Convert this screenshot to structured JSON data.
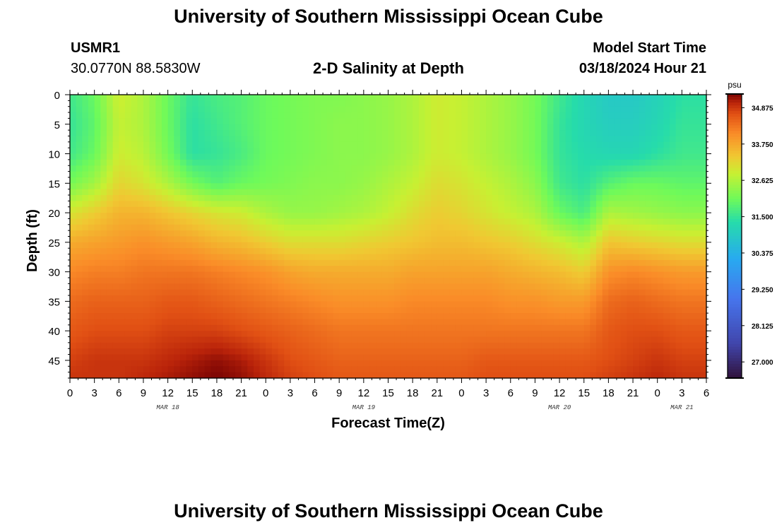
{
  "header": {
    "title": "University of Southern Mississippi Ocean Cube",
    "station": "USMR1",
    "coordinates": "30.0770N  88.5830W",
    "subtitle": "2-D Salinity at Depth",
    "model_start_label": "Model Start Time",
    "model_start_value": "03/18/2024 Hour 21"
  },
  "footer": {
    "title": "University of Southern Mississippi Ocean Cube"
  },
  "chart_data": {
    "type": "heatmap",
    "title": "2-D Salinity at Depth",
    "xlabel": "Forecast Time(Z)",
    "ylabel": "Depth (ft)",
    "x_hours_range": [
      0,
      78
    ],
    "x_tick_hours": [
      0,
      3,
      6,
      9,
      12,
      15,
      18,
      21,
      24,
      27,
      30,
      33,
      36,
      39,
      42,
      45,
      48,
      51,
      54,
      57,
      60,
      63,
      66,
      69,
      72,
      75,
      78
    ],
    "x_tick_labels": [
      "0",
      "3",
      "6",
      "9",
      "12",
      "15",
      "18",
      "21",
      "0",
      "3",
      "6",
      "9",
      "12",
      "15",
      "18",
      "21",
      "0",
      "3",
      "6",
      "9",
      "12",
      "15",
      "18",
      "21",
      "0",
      "3",
      "6"
    ],
    "date_labels": [
      {
        "label": "MAR 18",
        "hour": 12
      },
      {
        "label": "MAR 19",
        "hour": 36
      },
      {
        "label": "MAR 20",
        "hour": 60
      },
      {
        "label": "MAR 21",
        "hour": 75
      }
    ],
    "ylim": [
      0,
      48
    ],
    "y_ticks": [
      0,
      5,
      10,
      15,
      20,
      25,
      30,
      35,
      40,
      45
    ],
    "colorbar": {
      "unit": "psu",
      "range": [
        26.5,
        35.3
      ],
      "tick_values": [
        27.0,
        28.125,
        29.25,
        30.375,
        31.5,
        32.625,
        33.75,
        34.875
      ],
      "tick_labels": [
        "27.000",
        "28.125",
        "29.250",
        "30.375",
        "31.500",
        "32.625",
        "33.750",
        "34.875"
      ]
    },
    "depth_levels": [
      0,
      5,
      10,
      15,
      20,
      25,
      30,
      35,
      40,
      45,
      48
    ],
    "time_hours": [
      0,
      3,
      6,
      9,
      12,
      15,
      18,
      21,
      24,
      27,
      30,
      33,
      36,
      39,
      42,
      45,
      48,
      51,
      54,
      57,
      60,
      63,
      66,
      69,
      72,
      75,
      78
    ],
    "salinity": [
      [
        31.6,
        32.0,
        32.9,
        32.6,
        32.0,
        31.5,
        31.7,
        31.8,
        32.0,
        32.1,
        32.2,
        32.2,
        32.3,
        32.4,
        32.6,
        32.9,
        32.8,
        32.6,
        32.4,
        32.1,
        31.6,
        31.2,
        30.9,
        30.9,
        31.1,
        31.4,
        31.4
      ],
      [
        31.5,
        31.9,
        32.8,
        32.6,
        32.0,
        31.4,
        31.6,
        31.8,
        32.0,
        32.1,
        32.2,
        32.3,
        32.3,
        32.4,
        32.6,
        32.9,
        32.8,
        32.6,
        32.4,
        32.1,
        31.5,
        31.2,
        31.0,
        31.0,
        31.2,
        31.5,
        31.5
      ],
      [
        31.6,
        32.0,
        32.9,
        32.7,
        32.1,
        31.4,
        31.5,
        31.7,
        32.0,
        32.1,
        32.2,
        32.3,
        32.3,
        32.4,
        32.6,
        32.9,
        32.8,
        32.6,
        32.4,
        32.1,
        31.5,
        31.3,
        31.2,
        31.2,
        31.4,
        31.6,
        31.6
      ],
      [
        32.1,
        32.5,
        33.2,
        33.0,
        32.6,
        32.1,
        31.8,
        32.0,
        32.1,
        32.2,
        32.3,
        32.3,
        32.4,
        32.6,
        32.8,
        33.1,
        33.0,
        32.8,
        32.6,
        32.3,
        31.6,
        31.4,
        31.8,
        32.0,
        32.0,
        31.9,
        31.9
      ],
      [
        33.0,
        33.3,
        33.6,
        33.6,
        33.4,
        33.2,
        33.0,
        32.9,
        32.6,
        32.4,
        32.4,
        32.5,
        32.6,
        32.8,
        33.1,
        33.3,
        33.2,
        33.0,
        32.8,
        32.6,
        32.0,
        31.7,
        32.6,
        32.5,
        32.4,
        32.3,
        32.3
      ],
      [
        33.7,
        33.8,
        33.9,
        34.0,
        33.9,
        33.8,
        33.6,
        33.5,
        33.3,
        33.1,
        33.1,
        33.1,
        33.2,
        33.3,
        33.4,
        33.5,
        33.5,
        33.4,
        33.3,
        33.1,
        32.9,
        32.6,
        33.4,
        33.3,
        33.2,
        33.1,
        33.1
      ],
      [
        34.1,
        34.2,
        34.2,
        34.3,
        34.3,
        34.3,
        34.2,
        34.1,
        34.0,
        33.8,
        33.7,
        33.7,
        33.7,
        33.7,
        33.8,
        33.8,
        33.8,
        33.8,
        33.7,
        33.6,
        33.5,
        33.3,
        34.0,
        34.1,
        34.0,
        33.9,
        33.9
      ],
      [
        34.4,
        34.5,
        34.5,
        34.5,
        34.6,
        34.6,
        34.5,
        34.4,
        34.3,
        34.2,
        34.1,
        34.0,
        34.0,
        34.0,
        34.1,
        34.1,
        34.1,
        34.1,
        34.0,
        34.0,
        33.9,
        33.9,
        34.4,
        34.5,
        34.4,
        34.3,
        34.3
      ],
      [
        34.6,
        34.7,
        34.7,
        34.7,
        34.8,
        34.8,
        34.8,
        34.7,
        34.6,
        34.5,
        34.4,
        34.3,
        34.3,
        34.3,
        34.3,
        34.3,
        34.3,
        34.3,
        34.3,
        34.3,
        34.3,
        34.3,
        34.6,
        34.7,
        34.7,
        34.6,
        34.6
      ],
      [
        34.8,
        34.9,
        34.9,
        34.9,
        35.0,
        35.1,
        35.2,
        35.1,
        34.9,
        34.7,
        34.6,
        34.5,
        34.5,
        34.5,
        34.5,
        34.5,
        34.5,
        34.6,
        34.6,
        34.6,
        34.6,
        34.6,
        34.7,
        34.8,
        34.9,
        34.8,
        34.8
      ],
      [
        34.9,
        34.9,
        34.9,
        35.0,
        35.1,
        35.2,
        35.3,
        35.2,
        35.0,
        34.8,
        34.7,
        34.6,
        34.6,
        34.6,
        34.6,
        34.6,
        34.6,
        34.7,
        34.7,
        34.7,
        34.7,
        34.7,
        34.8,
        34.9,
        35.0,
        34.9,
        34.9
      ]
    ]
  }
}
